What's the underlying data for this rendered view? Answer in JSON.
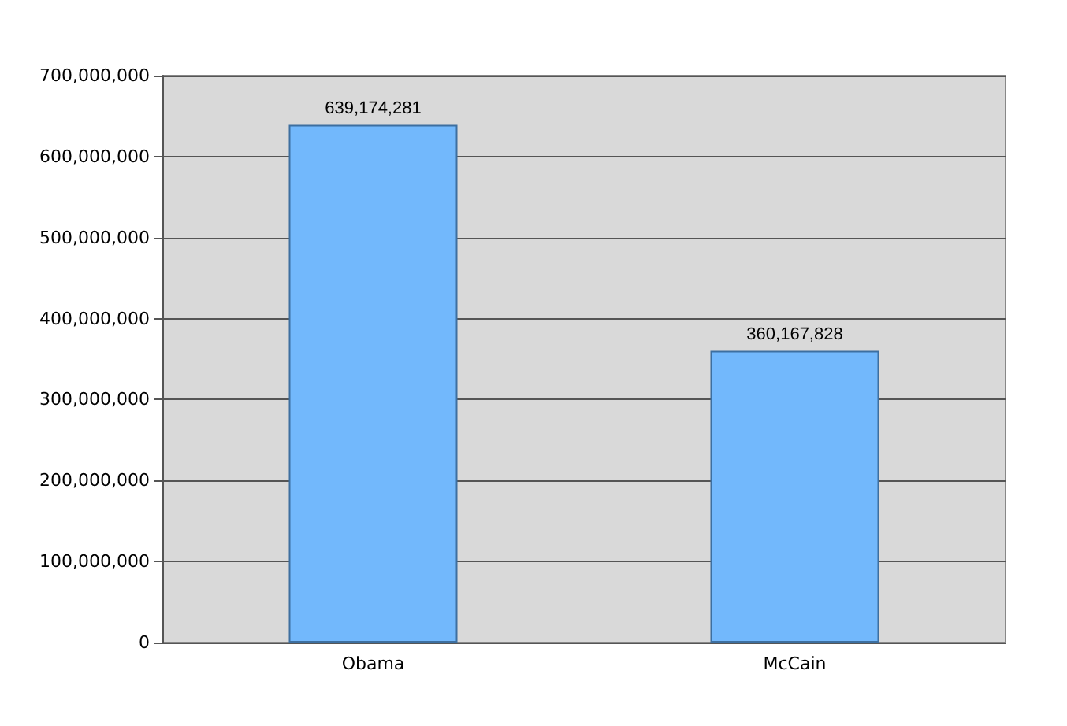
{
  "chart_data": {
    "type": "bar",
    "categories": [
      "Obama",
      "McCain"
    ],
    "values": [
      639174281,
      360167828
    ],
    "value_labels": [
      "639,174,281",
      "360,167,828"
    ],
    "color": "#72b8fc",
    "ylim": [
      0,
      700000000
    ],
    "yticks": [
      0,
      {
        "value": 100000000,
        "label": "100,000,000"
      },
      {
        "value": 200000000,
        "label": "200,000,000"
      },
      {
        "value": 300000000,
        "label": "300,000,000"
      },
      {
        "value": 400000000,
        "label": "400,000,000"
      },
      {
        "value": 500000000,
        "label": "500,000,000"
      },
      {
        "value": 600000000,
        "label": "600,000,000"
      },
      {
        "value": 700000000,
        "label": "700,000,000"
      }
    ],
    "grid": "y"
  }
}
